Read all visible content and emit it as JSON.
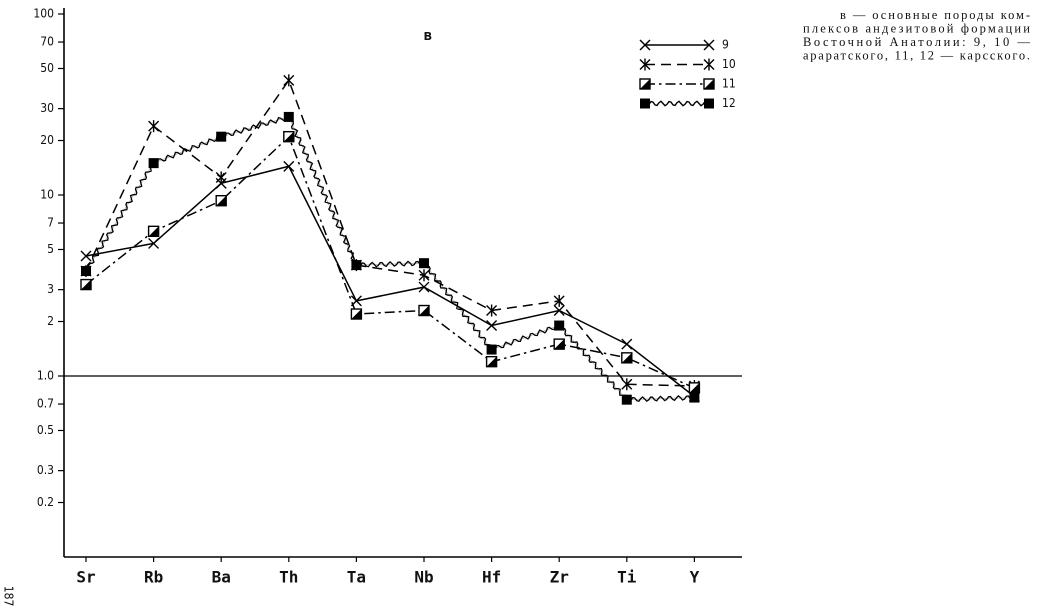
{
  "chart_data": {
    "type": "line",
    "title": "в",
    "categories": [
      "Sr",
      "Rb",
      "Ba",
      "Th",
      "Ta",
      "Nb",
      "Hf",
      "Zr",
      "Ti",
      "Y"
    ],
    "log_scale": true,
    "ylim": [
      0.1,
      100
    ],
    "yticks": [
      0.2,
      0.3,
      0.5,
      0.7,
      {
        "value": 1,
        "label": "1.0"
      },
      2,
      3,
      5,
      7,
      10,
      20,
      30,
      50,
      70,
      100
    ],
    "reference_line": 1,
    "legend": "upper right",
    "series": [
      {
        "name": "9",
        "color": "#000000",
        "line_style": "solid",
        "marker": "x",
        "values": [
          4.6,
          5.4,
          11.6,
          14.4,
          2.6,
          3.1,
          1.9,
          2.3,
          1.5,
          0.77
        ]
      },
      {
        "name": "10",
        "color": "#000000",
        "line_style": "dashed",
        "marker": "star",
        "values": [
          3.8,
          24,
          12.5,
          43,
          4.1,
          3.6,
          2.3,
          2.6,
          0.9,
          0.88
        ]
      },
      {
        "name": "11",
        "color": "#000000",
        "line_style": "dashdot",
        "marker": "half-square",
        "values": [
          3.2,
          6.3,
          9.3,
          21,
          2.2,
          2.3,
          1.2,
          1.5,
          1.26,
          0.86
        ]
      },
      {
        "name": "12",
        "color": "#000000",
        "line_style": "wavy",
        "marker": "square",
        "values": [
          3.8,
          15,
          21,
          27,
          4.1,
          4.2,
          1.4,
          1.9,
          0.74,
          0.76
        ]
      }
    ],
    "caption": [
      "в — основные породы ком-",
      "плексов андезитовой формации",
      "Восточной Анатолии: 9, 10 —",
      "араратского, 11, 12 — карсского."
    ],
    "page_number": "187"
  }
}
